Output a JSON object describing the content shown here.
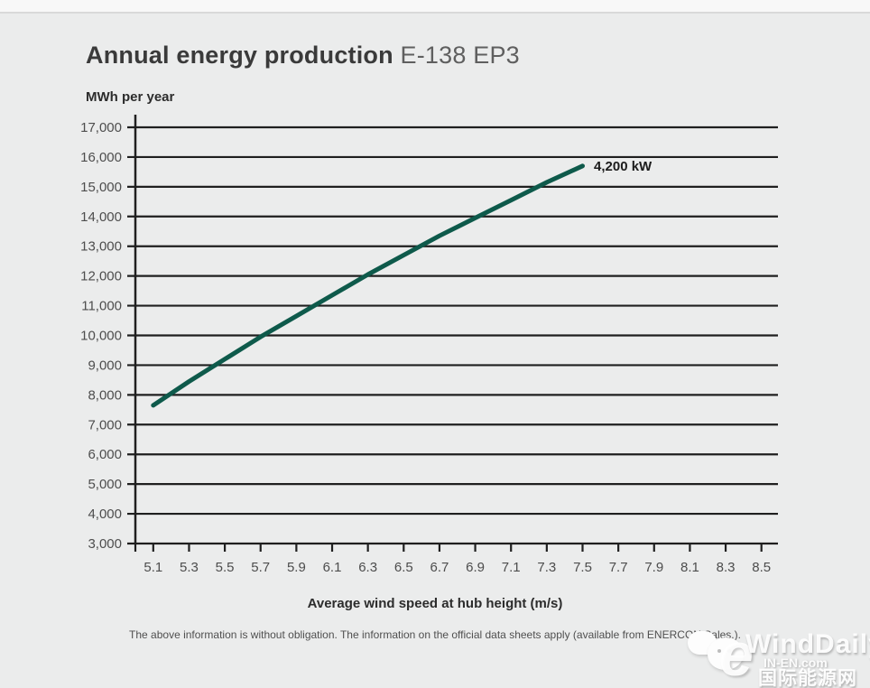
{
  "page": {
    "title_main": "Annual energy production",
    "title_model": "E-138 EP3",
    "footer_note": "The above information is without obligation. The information on the official data sheets apply (available from ENERCON Sales.)."
  },
  "watermark": {
    "brand": "WindDaily",
    "site": "IN-EN.com",
    "site_cn": "国际能源网",
    "logo_glyph": "e"
  },
  "chart_data": {
    "type": "line",
    "title": "Annual energy production E-138 EP3",
    "ylabel": "MWh per year",
    "xlabel": "Average wind speed at hub height (m/s)",
    "xlim": [
      5.0,
      8.6
    ],
    "ylim": [
      3000,
      17000
    ],
    "grid": "horizontal",
    "legend_position": "none",
    "annotation_label": "4,200 kW",
    "line_color": "#0e5a4b",
    "xtick_labels": [
      "5.1",
      "5.3",
      "5.5",
      "5.7",
      "5.9",
      "6.1",
      "6.3",
      "6.5",
      "6.7",
      "6.9",
      "7.1",
      "7.3",
      "7.5",
      "7.7",
      "7.9",
      "8.1",
      "8.3",
      "8.5"
    ],
    "ytick_values": [
      3000,
      4000,
      5000,
      6000,
      7000,
      8000,
      9000,
      10000,
      11000,
      12000,
      13000,
      14000,
      15000,
      16000,
      17000
    ],
    "ytick_labels": [
      "3,000",
      "4,000",
      "5,000",
      "6,000",
      "7,000",
      "8,000",
      "9,000",
      "10,000",
      "11,000",
      "12,000",
      "13,000",
      "14,000",
      "15,000",
      "16,000",
      "17,000"
    ],
    "series": [
      {
        "name": "4,200 kW",
        "points": [
          [
            5.1,
            7650
          ],
          [
            5.3,
            8450
          ],
          [
            5.5,
            9200
          ],
          [
            5.7,
            9950
          ],
          [
            5.9,
            10650
          ],
          [
            6.1,
            11350
          ],
          [
            6.3,
            12050
          ],
          [
            6.5,
            12700
          ],
          [
            6.7,
            13350
          ],
          [
            6.9,
            13950
          ],
          [
            7.1,
            14550
          ],
          [
            7.3,
            15150
          ],
          [
            7.5,
            15700
          ]
        ]
      }
    ]
  }
}
